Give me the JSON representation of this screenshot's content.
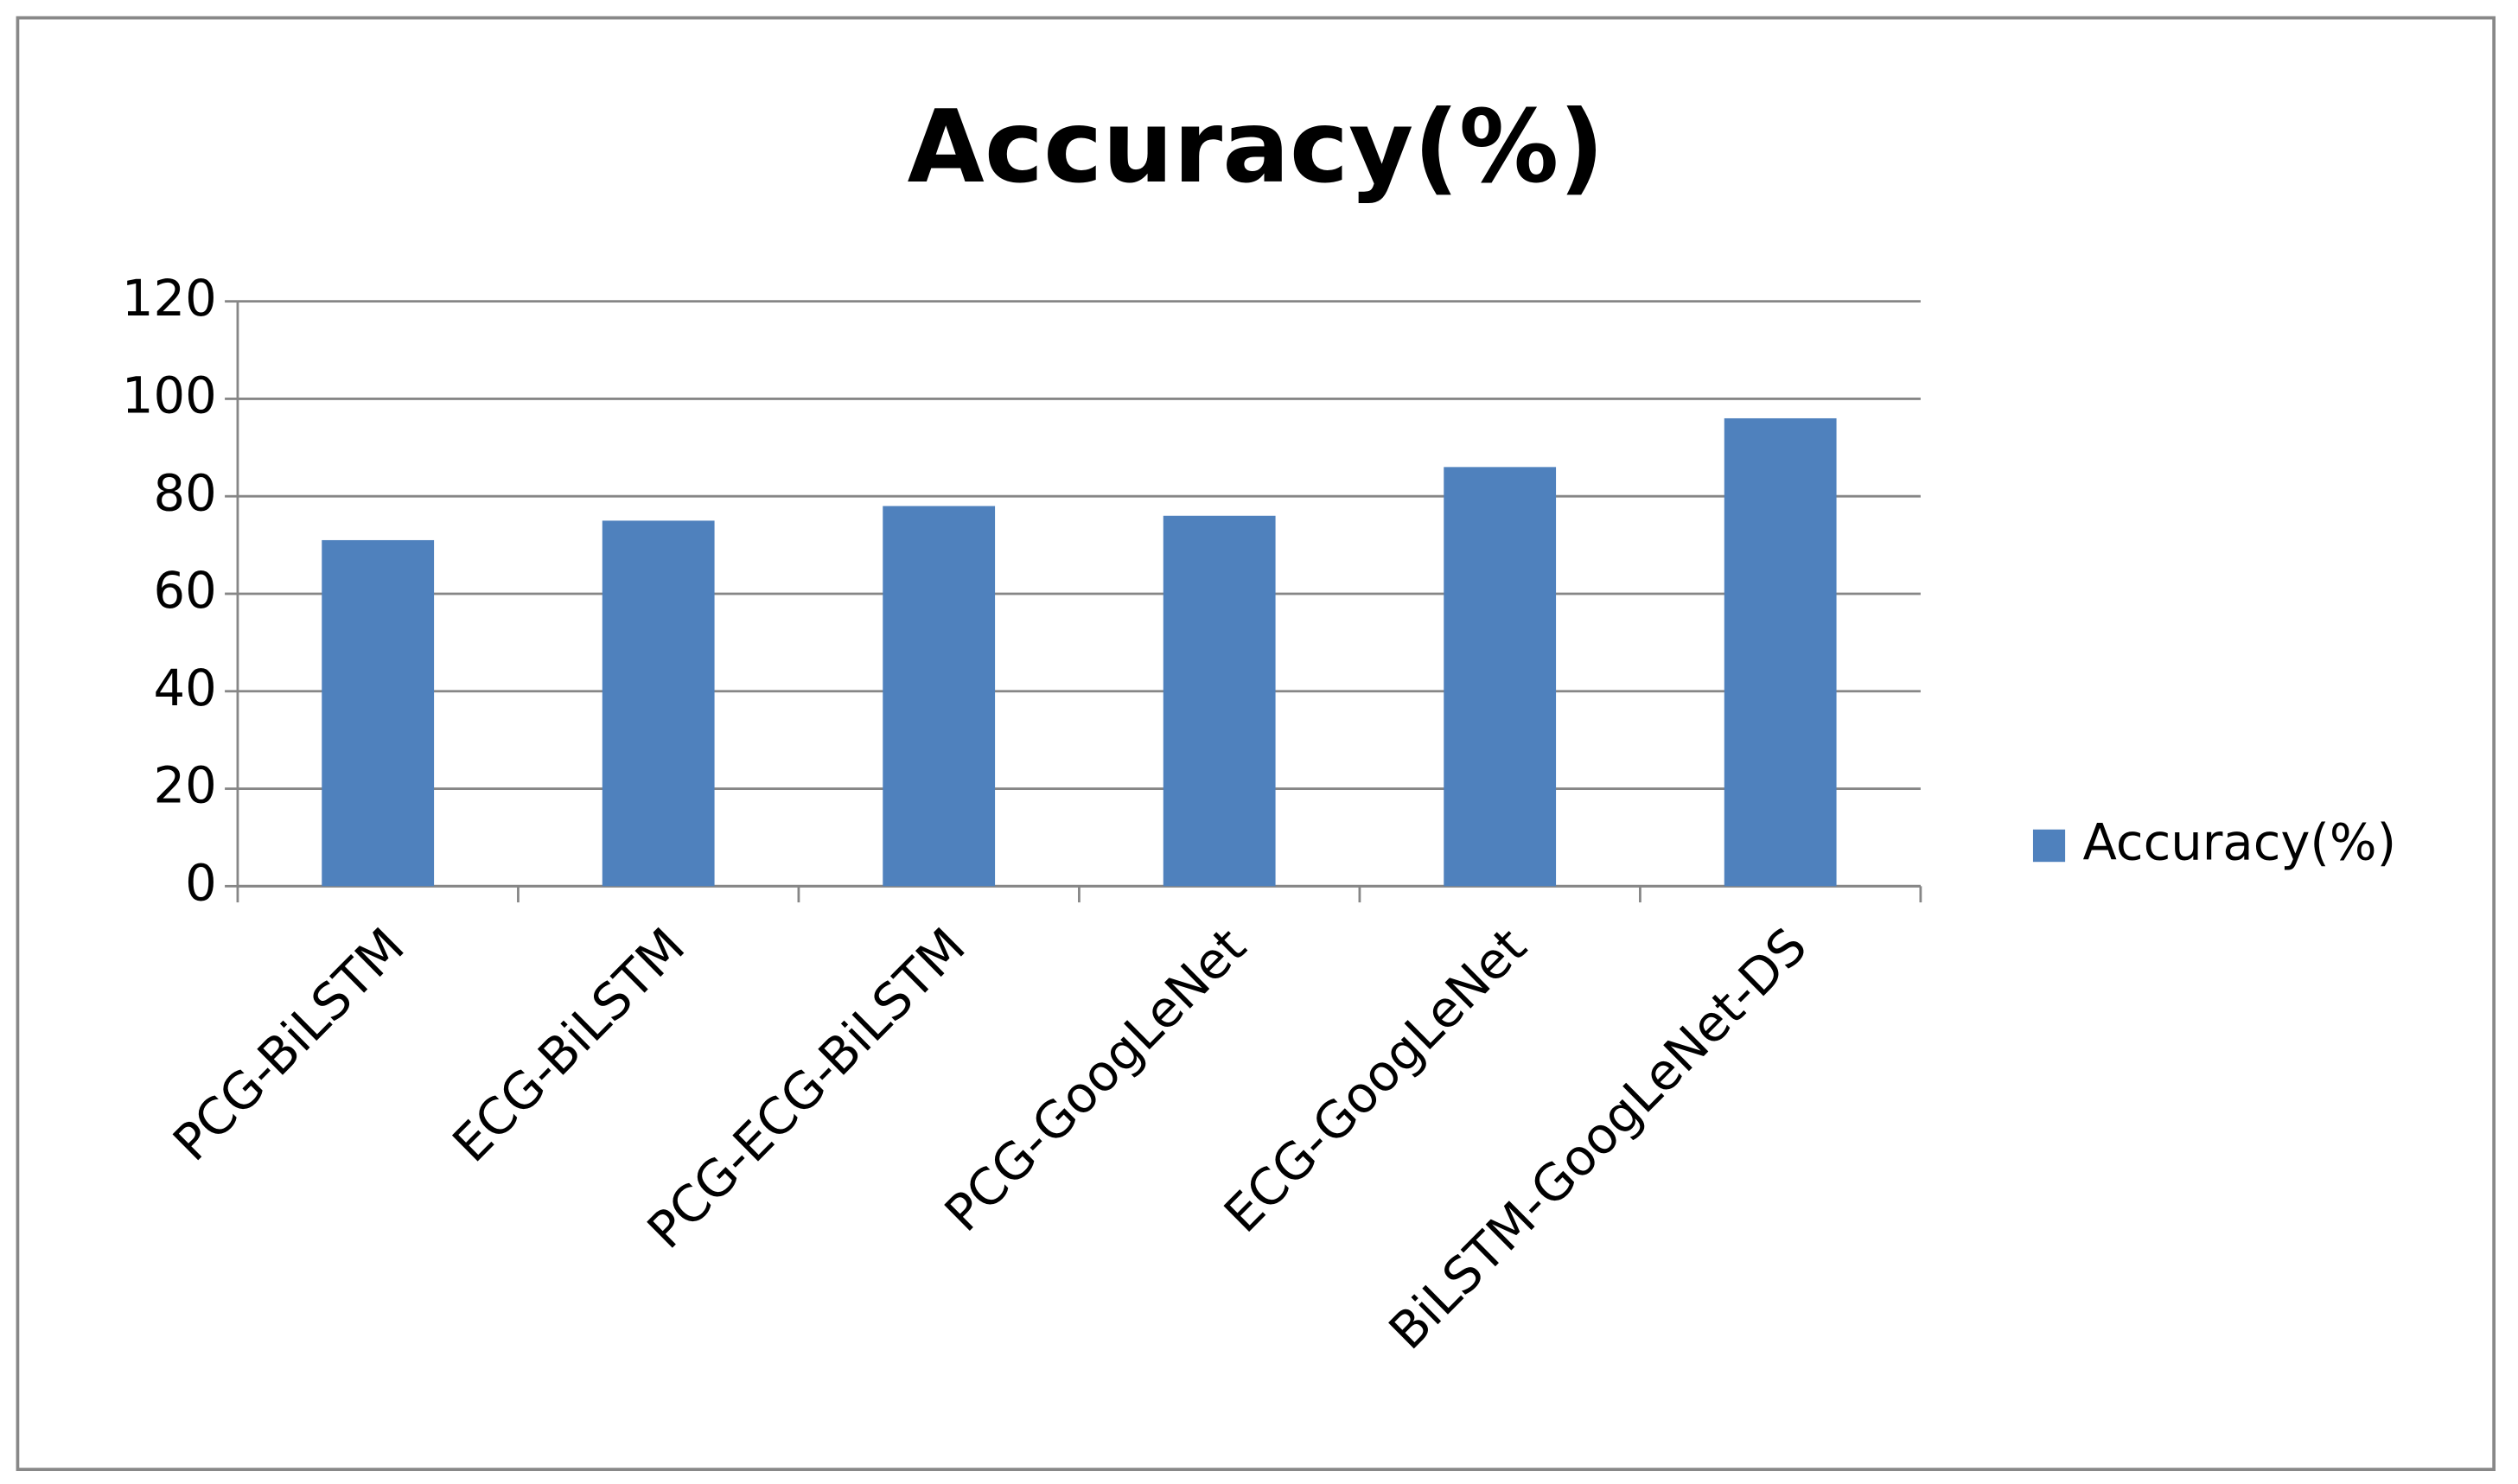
{
  "chart_data": {
    "type": "bar",
    "title": "Accuracy(%)",
    "categories": [
      "PCG-BiLSTM",
      "ECG-BiLSTM",
      "PCG-ECG-BiLSTM",
      "PCG-GoogLeNet",
      "ECG-GoogLeNet",
      "BiLSTM-GoogLeNet-DS"
    ],
    "series": [
      {
        "name": "Accuracy(%)",
        "color": "#4f81bd",
        "values": [
          71,
          75,
          78,
          76,
          86,
          96
        ]
      }
    ],
    "ylim": [
      0,
      120
    ],
    "yticks": [
      0,
      20,
      40,
      60,
      80,
      100,
      120
    ],
    "grid": true,
    "legend": "right"
  }
}
